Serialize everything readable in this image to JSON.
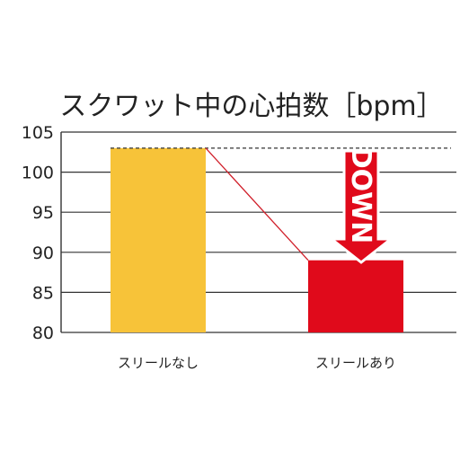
{
  "chart_data": {
    "type": "bar",
    "title": "スクワット中の心拍数［bpm］",
    "categories": [
      "スリールなし",
      "スリールあり"
    ],
    "values": [
      103,
      89
    ],
    "ylim": [
      80,
      105
    ],
    "yticks": [
      105,
      100,
      95,
      90,
      85,
      80
    ],
    "grid": true,
    "bar_colors": [
      "#F7C339",
      "#E00A1B"
    ],
    "connector_color": "#D01F2A",
    "annotation": {
      "text": "DOWN",
      "color": "#E00A1B",
      "border_color": "#FFFFFF"
    }
  }
}
